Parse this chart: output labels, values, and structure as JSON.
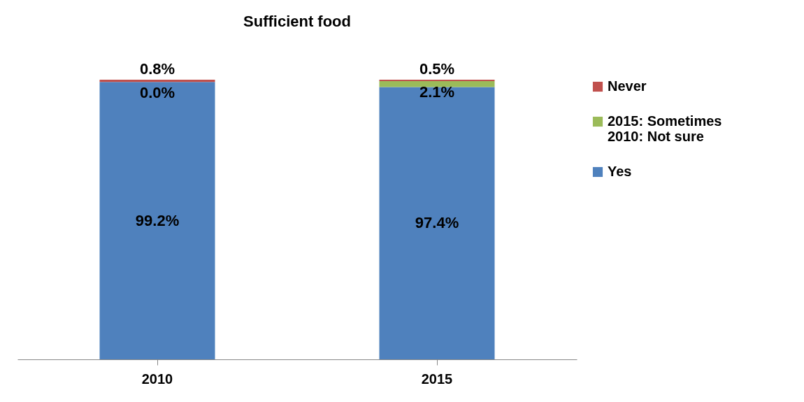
{
  "chart_data": {
    "type": "bar",
    "stacked": true,
    "title": "Sufficient food",
    "categories": [
      "2010",
      "2015"
    ],
    "legend": "right",
    "series": [
      {
        "name": "Yes",
        "color": "#4f81bd",
        "values": [
          99.2,
          97.4
        ],
        "value_labels": [
          "99.2%",
          "97.4%"
        ]
      },
      {
        "name": "2015: Sometimes\n2010: Not sure",
        "color": "#9bbb59",
        "values": [
          0.0,
          2.1
        ],
        "value_labels": [
          "0.0%",
          "2.1%"
        ]
      },
      {
        "name": "Never",
        "color": "#c0504d",
        "values": [
          0.8,
          0.5
        ],
        "value_labels": [
          "0.8%",
          "0.5%"
        ]
      }
    ]
  }
}
